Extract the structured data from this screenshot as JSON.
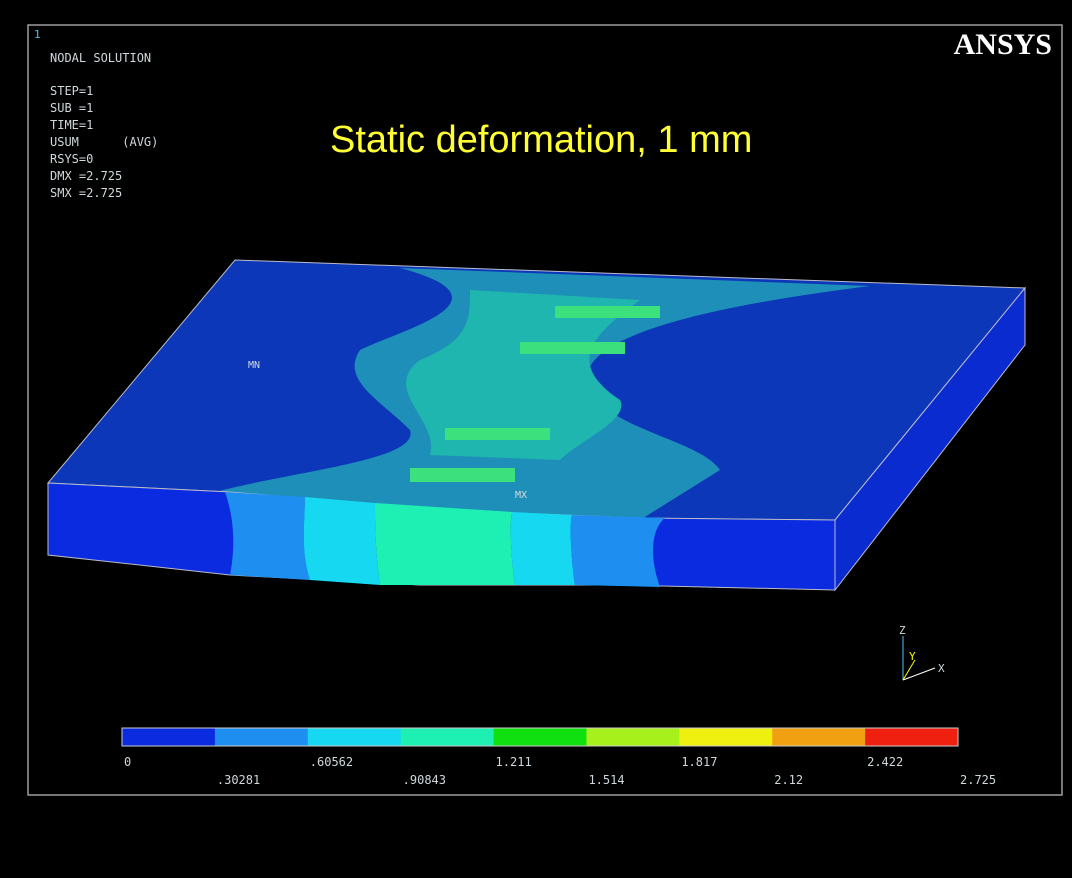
{
  "window": {
    "number": "1",
    "logo": "ANSYS"
  },
  "info": [
    "NODAL SOLUTION",
    "STEP=1",
    "SUB =1",
    "TIME=1",
    "USUM      (AVG)",
    "RSYS=0",
    "DMX =2.725",
    "SMX =2.725"
  ],
  "title": "Static deformation, 1 mm",
  "markers": {
    "min": "MN",
    "max": "MX"
  },
  "triad": {
    "z": "Z",
    "y": "Y",
    "x": "X"
  },
  "legend": {
    "colors": [
      "#0a2be0",
      "#1e8ff0",
      "#16d8f0",
      "#1ef0b4",
      "#10e010",
      "#a8f01c",
      "#f0f010",
      "#f0a010",
      "#f02010"
    ],
    "labels": [
      "0",
      ".30281",
      ".60562",
      ".90843",
      "1.211",
      "1.514",
      "1.817",
      "2.12",
      "2.422",
      "2.725"
    ]
  }
}
